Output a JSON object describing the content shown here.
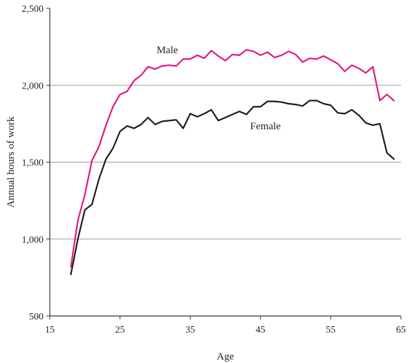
{
  "chart_data": {
    "type": "line",
    "title": "",
    "xlabel": "Age",
    "ylabel": "Annual hours of work",
    "xlim": [
      15,
      65
    ],
    "ylim": [
      500,
      2500
    ],
    "x_ticks": [
      "15",
      "25",
      "35",
      "45",
      "55",
      "65"
    ],
    "x_tick_values": [
      15,
      25,
      35,
      45,
      55,
      65
    ],
    "y_ticks": [
      "500",
      "1,000",
      "1,500",
      "2,000",
      "2,500"
    ],
    "y_tick_values": [
      500,
      1000,
      1500,
      2000,
      2500
    ],
    "gridlines_y": [
      1000,
      1500,
      2000
    ],
    "x": [
      18,
      19,
      20,
      21,
      22,
      23,
      24,
      25,
      26,
      27,
      28,
      29,
      30,
      31,
      32,
      33,
      34,
      35,
      36,
      37,
      38,
      39,
      40,
      41,
      42,
      43,
      44,
      45,
      46,
      47,
      48,
      49,
      50,
      51,
      52,
      53,
      54,
      55,
      56,
      57,
      58,
      59,
      60,
      61,
      62,
      63,
      64
    ],
    "series": [
      {
        "name": "Male",
        "color": "#e0177f",
        "values": [
          820,
          1120,
          1290,
          1510,
          1600,
          1740,
          1860,
          1940,
          1960,
          2030,
          2065,
          2120,
          2105,
          2125,
          2130,
          2125,
          2170,
          2170,
          2195,
          2175,
          2225,
          2190,
          2160,
          2200,
          2195,
          2230,
          2220,
          2195,
          2215,
          2180,
          2195,
          2220,
          2200,
          2150,
          2175,
          2170,
          2190,
          2165,
          2140,
          2090,
          2130,
          2110,
          2080,
          2120,
          1900,
          1940,
          1900
        ]
      },
      {
        "name": "Female",
        "color": "#1a1a1a",
        "values": [
          770,
          1000,
          1190,
          1225,
          1390,
          1520,
          1590,
          1700,
          1735,
          1720,
          1745,
          1790,
          1745,
          1765,
          1770,
          1775,
          1720,
          1815,
          1795,
          1815,
          1840,
          1770,
          1790,
          1810,
          1830,
          1810,
          1860,
          1860,
          1895,
          1895,
          1890,
          1880,
          1875,
          1865,
          1900,
          1900,
          1880,
          1870,
          1820,
          1815,
          1840,
          1805,
          1755,
          1740,
          1750,
          1560,
          1520
        ]
      }
    ]
  }
}
